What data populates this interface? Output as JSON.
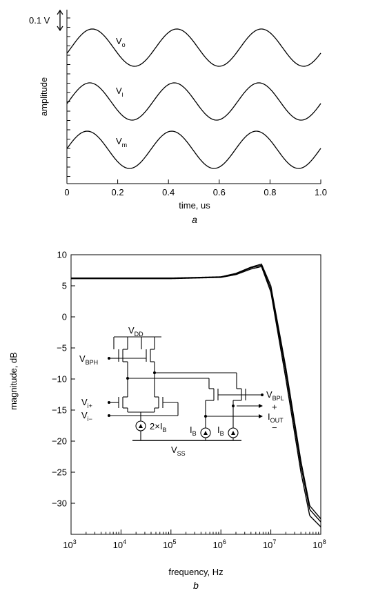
{
  "chart_data": [
    {
      "type": "line",
      "panel_label": "a",
      "xlabel": "time, us",
      "ylabel": "amplitude",
      "xlim": [
        0,
        1.0
      ],
      "x_ticks": [
        "0",
        "0.2",
        "0.4",
        "0.6",
        "0.8",
        "1.0"
      ],
      "scale_bar": "0.1 V",
      "grid": false,
      "series": [
        {
          "name": "V",
          "sub": "o",
          "period_us": 0.333,
          "amplitude_v": 0.1,
          "phase_peak_us": 0.1
        },
        {
          "name": "V",
          "sub": "i",
          "period_us": 0.333,
          "amplitude_v": 0.1,
          "phase_peak_us": 0.09
        },
        {
          "name": "V",
          "sub": "m",
          "period_us": 0.333,
          "amplitude_v": 0.1,
          "phase_peak_us": 0.08
        }
      ]
    },
    {
      "type": "line",
      "panel_label": "b",
      "xlabel": "frequency, Hz",
      "ylabel": "magnitude, dB",
      "xscale": "log",
      "xlim": [
        1000,
        100000000
      ],
      "ylim": [
        -35,
        10
      ],
      "x_ticks": [
        {
          "base": "10",
          "exp": "3"
        },
        {
          "base": "10",
          "exp": "4"
        },
        {
          "base": "10",
          "exp": "5"
        },
        {
          "base": "10",
          "exp": "6"
        },
        {
          "base": "10",
          "exp": "7"
        },
        {
          "base": "10",
          "exp": "8"
        }
      ],
      "y_ticks": [
        "10",
        "5",
        "0",
        "-5",
        "-10",
        "-15",
        "-20",
        "-25",
        "-30"
      ],
      "grid": false,
      "series": [
        {
          "x": [
            1000,
            10000,
            100000,
            1000000,
            2000000,
            4000000,
            6500000,
            10000000,
            20000000,
            40000000,
            60000000,
            100000000
          ],
          "y": [
            6.2,
            6.2,
            6.2,
            6.4,
            6.9,
            7.9,
            8.3,
            4.5,
            -9,
            -24,
            -31,
            -33
          ]
        },
        {
          "x": [
            1000,
            10000,
            100000,
            1000000,
            2000000,
            4000000,
            6500000,
            10000000,
            20000000,
            40000000,
            60000000,
            100000000
          ],
          "y": [
            6.15,
            6.15,
            6.15,
            6.35,
            6.8,
            7.7,
            8.1,
            4.0,
            -10,
            -25,
            -32,
            -33.8
          ]
        },
        {
          "x": [
            1000,
            10000,
            100000,
            1000000,
            2000000,
            4000000,
            6500000,
            10000000,
            20000000,
            40000000,
            60000000,
            100000000
          ],
          "y": [
            6.25,
            6.25,
            6.25,
            6.45,
            7.0,
            8.0,
            8.5,
            5.0,
            -8.2,
            -23.2,
            -30.4,
            -32.5
          ]
        }
      ],
      "inset_schematic": {
        "labels": {
          "vdd": {
            "main": "V",
            "sub": "DD"
          },
          "vss": {
            "main": "V",
            "sub": "SS"
          },
          "vbph": {
            "main": "V",
            "sub": "BPH"
          },
          "vbpl": {
            "main": "V",
            "sub": "BPL"
          },
          "vip": {
            "main": "V",
            "sub": "i+"
          },
          "vim": {
            "main": "V",
            "sub": "i−"
          },
          "iout": {
            "main": "I",
            "sub": "OUT"
          },
          "plus": "+",
          "minus": "−",
          "tail": {
            "main": "2×I",
            "sub": "B"
          },
          "ib1": {
            "main": "I",
            "sub": "B"
          },
          "ib2": {
            "main": "I",
            "sub": "B"
          }
        }
      }
    }
  ]
}
